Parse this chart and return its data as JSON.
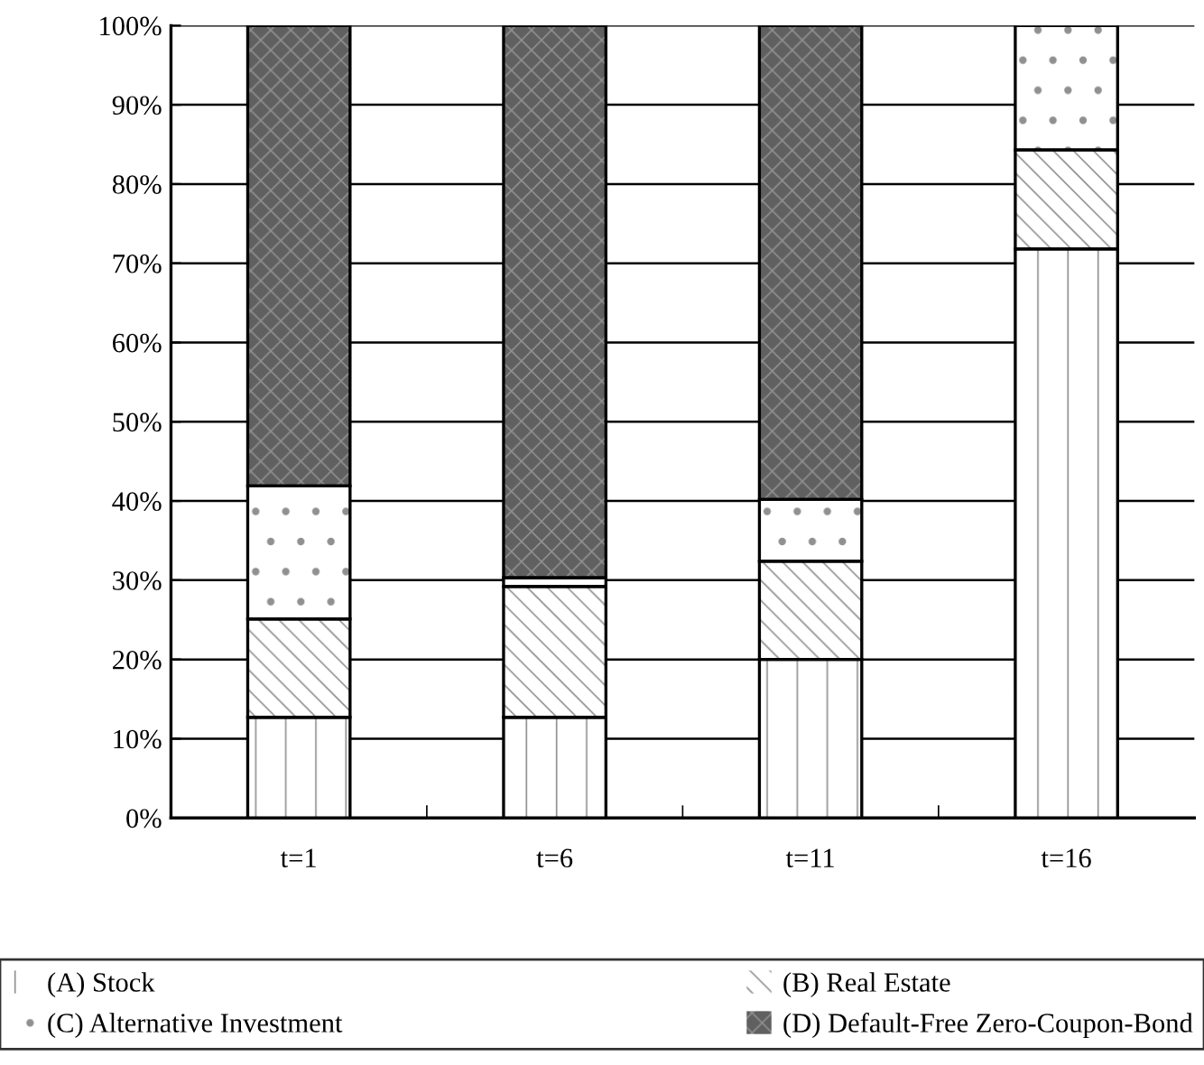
{
  "chart_data": {
    "type": "bar",
    "stacked": true,
    "categories": [
      "t=1",
      "t=6",
      "t=11",
      "t=16"
    ],
    "series": [
      {
        "name": "(A) Stock",
        "color": "#ffffff",
        "values": [
          12.7,
          12.7,
          20.0,
          71.8
        ]
      },
      {
        "name": "(B) Real Estate",
        "color": "#ffffff",
        "values": [
          12.4,
          16.5,
          12.4,
          12.5
        ]
      },
      {
        "name": "(C) Alternative Investment",
        "color": "#ffffff",
        "values": [
          16.8,
          1.1,
          7.8,
          15.7
        ]
      },
      {
        "name": "(D) Default-Free Zero-Coupon-Bond",
        "color": "#606060",
        "values": [
          58.1,
          69.7,
          59.8,
          0
        ]
      }
    ],
    "ylim": [
      0,
      100
    ],
    "yticks": [
      {
        "value": 0,
        "label": "0%"
      },
      {
        "value": 10,
        "label": "10%"
      },
      {
        "value": 20,
        "label": "20%"
      },
      {
        "value": 30,
        "label": "30%"
      },
      {
        "value": 40,
        "label": "40%"
      },
      {
        "value": 50,
        "label": "50%"
      },
      {
        "value": 60,
        "label": "60%"
      },
      {
        "value": 70,
        "label": "70%"
      },
      {
        "value": 80,
        "label": "80%"
      },
      {
        "value": 90,
        "label": "90%"
      },
      {
        "value": 100,
        "label": "100%"
      }
    ],
    "grid": "y",
    "legend": "bottom"
  }
}
